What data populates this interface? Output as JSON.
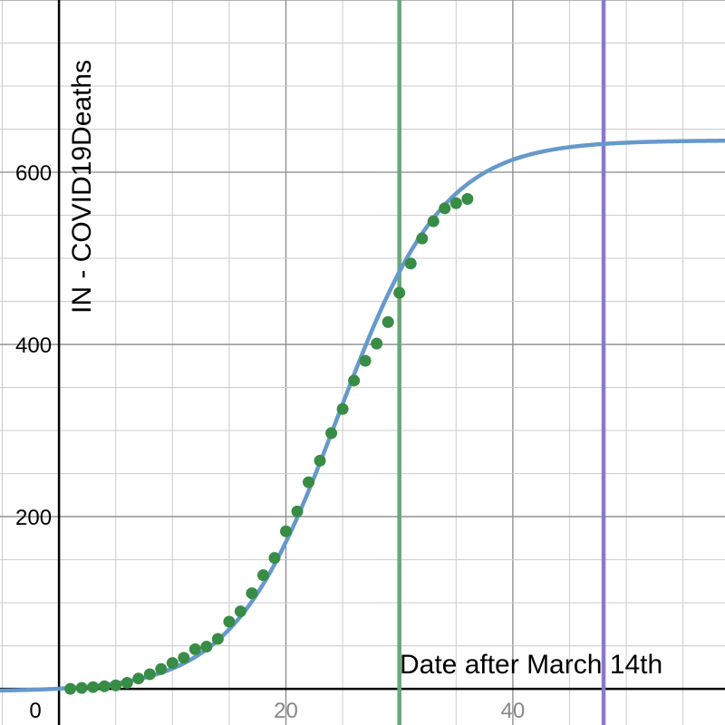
{
  "chart_data": {
    "type": "scatter",
    "title": "",
    "xlabel": "Date after March 14th",
    "ylabel": "IN - COVID19Deaths",
    "xlim": [
      -5.2,
      58.7
    ],
    "ylim": [
      -42,
      800
    ],
    "grid": true,
    "x_ticks": [
      {
        "value": 0,
        "label": "0"
      },
      {
        "value": 20,
        "label": "20"
      },
      {
        "value": 40,
        "label": "40"
      }
    ],
    "y_ticks": [
      {
        "value": 200,
        "label": "200"
      },
      {
        "value": 400,
        "label": "400"
      },
      {
        "value": 600,
        "label": "600"
      }
    ],
    "series": [
      {
        "kind": "points",
        "color": "#388c46",
        "points": [
          [
            1,
            0
          ],
          [
            2,
            1
          ],
          [
            3,
            2
          ],
          [
            4,
            3
          ],
          [
            5,
            4
          ],
          [
            6,
            7
          ],
          [
            7,
            12
          ],
          [
            8,
            17
          ],
          [
            9,
            23
          ],
          [
            10,
            30
          ],
          [
            11,
            36
          ],
          [
            12,
            46
          ],
          [
            13,
            49
          ],
          [
            14,
            58
          ],
          [
            15,
            78
          ],
          [
            16,
            90
          ],
          [
            17,
            111
          ],
          [
            18,
            132
          ],
          [
            19,
            152
          ],
          [
            20,
            183
          ],
          [
            21,
            206
          ],
          [
            22,
            240
          ],
          [
            23,
            265
          ],
          [
            24,
            297
          ],
          [
            25,
            325
          ],
          [
            26,
            358
          ],
          [
            27,
            381
          ],
          [
            28,
            401
          ],
          [
            29,
            426
          ],
          [
            30,
            460
          ],
          [
            31,
            494
          ],
          [
            32,
            523
          ],
          [
            33,
            543
          ],
          [
            34,
            558
          ],
          [
            35,
            564
          ],
          [
            36,
            569
          ]
        ]
      },
      {
        "kind": "curve",
        "color": "#6699cc",
        "model": "logistic",
        "params": {
          "L": 640,
          "k": 0.215,
          "x0": 24.6,
          "c": -3
        }
      }
    ],
    "vertical_lines": [
      {
        "x": 30,
        "color": "#6aa776"
      },
      {
        "x": 48,
        "color": "#8a79c8"
      }
    ]
  }
}
